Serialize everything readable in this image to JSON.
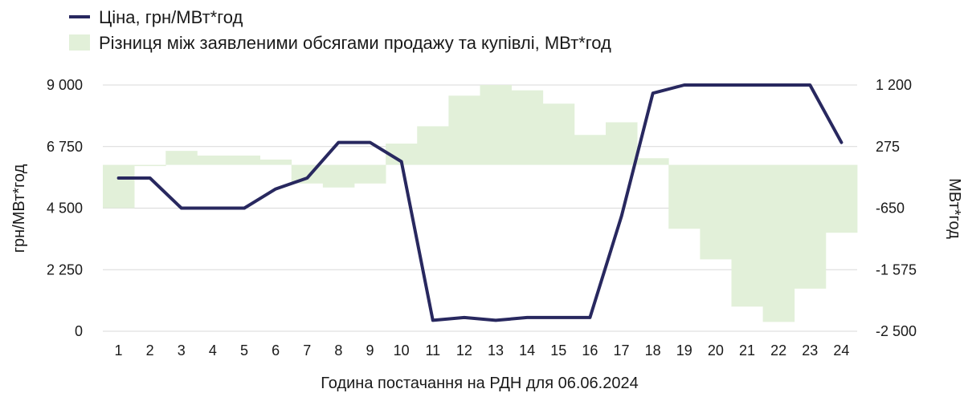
{
  "chart_data": {
    "type": "bar+line",
    "xlabel": "Година постачання на РДН для 06.06.2024",
    "ylabel_left": "грн/МВт*год",
    "ylabel_right": "МВт*год",
    "categories": [
      "1",
      "2",
      "3",
      "4",
      "5",
      "6",
      "7",
      "8",
      "9",
      "10",
      "11",
      "12",
      "13",
      "14",
      "15",
      "16",
      "17",
      "18",
      "19",
      "20",
      "21",
      "22",
      "23",
      "24"
    ],
    "y_left": {
      "ticks": [
        "0",
        "2 250",
        "4 500",
        "6 750",
        "9 000"
      ],
      "lim": [
        0,
        9000
      ]
    },
    "y_right": {
      "ticks": [
        "-2 500",
        "-1 575",
        "-650",
        "275",
        "1 200"
      ],
      "lim": [
        -2500,
        1200
      ]
    },
    "series": [
      {
        "name": "Ціна, грн/МВт*год",
        "kind": "line",
        "axis": "left",
        "color": "#28285f",
        "values": [
          5600,
          5600,
          4500,
          4500,
          4500,
          5200,
          5600,
          6900,
          6900,
          6200,
          400,
          500,
          400,
          500,
          500,
          500,
          4200,
          8700,
          9000,
          9000,
          9000,
          9000,
          9000,
          6900
        ]
      },
      {
        "name": "Різниця між заявленими обсягами продажу та купівлі, МВт*год",
        "kind": "bar",
        "axis": "right",
        "color": "#e2f0d9",
        "values": [
          -650,
          0,
          210,
          140,
          140,
          80,
          -280,
          -340,
          -280,
          320,
          580,
          1040,
          1200,
          1120,
          920,
          450,
          640,
          100,
          -960,
          -1420,
          -2130,
          -2360,
          -1860,
          -1020
        ]
      }
    ],
    "legend": "top-left",
    "grid": "horizontal"
  }
}
